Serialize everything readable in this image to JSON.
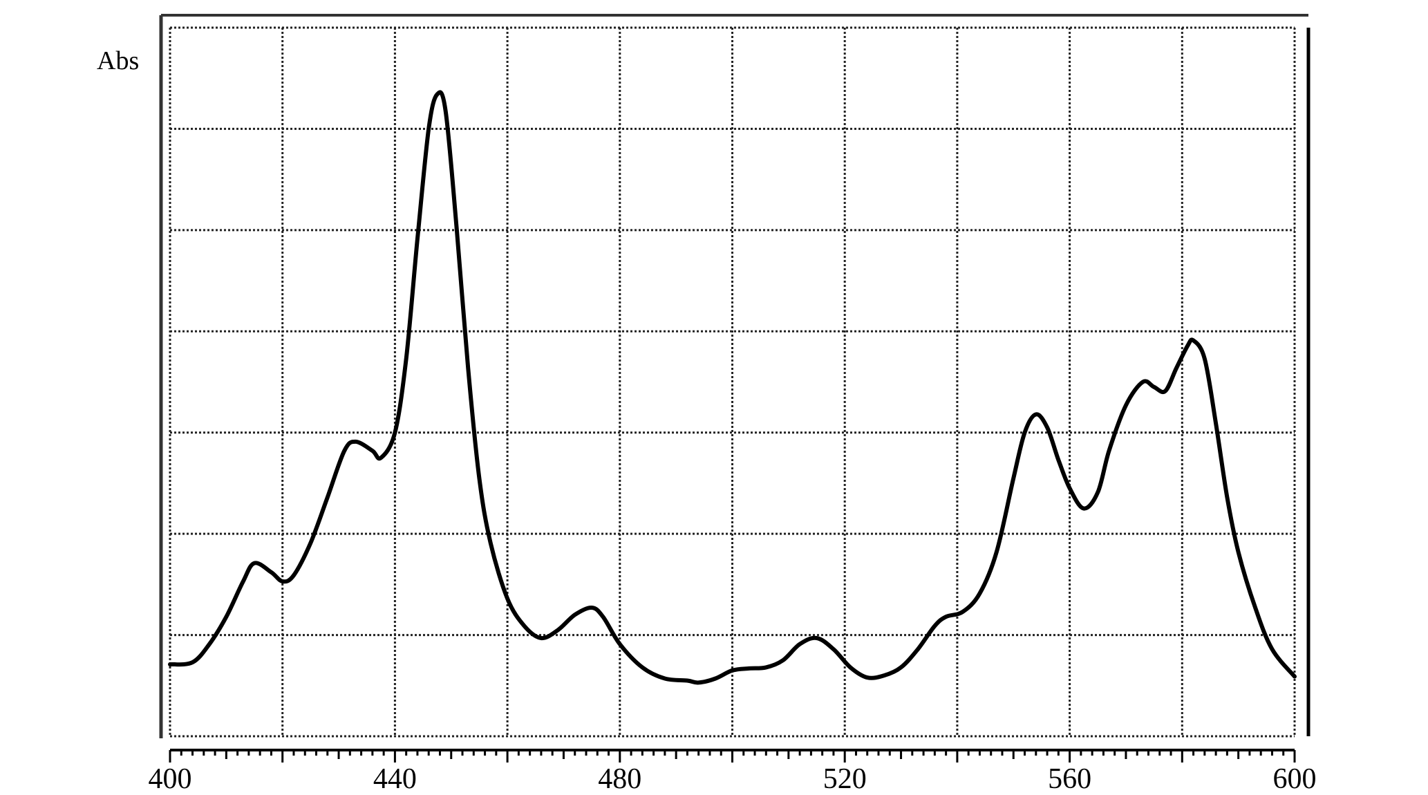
{
  "chart_data": {
    "type": "line",
    "title": "",
    "xlabel": "",
    "ylabel": "Abs",
    "xlim": [
      400,
      600
    ],
    "ylim": [
      0,
      7
    ],
    "grid": true,
    "x_ticks": [
      400,
      440,
      480,
      520,
      560,
      600
    ],
    "x_tick_labels": [
      "400",
      "440",
      "480",
      "520",
      "560",
      "600"
    ],
    "y_tick_labels": [],
    "line_color": "#000000",
    "series": [
      {
        "x": [
          400,
          404,
          407,
          410,
          413,
          415,
          418,
          420,
          422,
          425,
          428,
          431,
          433,
          436,
          437.5,
          440,
          442,
          444,
          446,
          447.5,
          449,
          451,
          453,
          455,
          457,
          460,
          463,
          466,
          469,
          472,
          475,
          477,
          480,
          484,
          488,
          492,
          494,
          497,
          500,
          503,
          506,
          509,
          512,
          515,
          518,
          521,
          524,
          527,
          530,
          533,
          536,
          538,
          541,
          544,
          547,
          550,
          552,
          554,
          556,
          558,
          560,
          562.5,
          565,
          567,
          570,
          573,
          575,
          577,
          579,
          581,
          582,
          584,
          586,
          588,
          590,
          593,
          596,
          600
        ],
        "y": [
          0.71,
          0.73,
          0.91,
          1.18,
          1.53,
          1.71,
          1.62,
          1.53,
          1.59,
          1.91,
          2.36,
          2.82,
          2.91,
          2.82,
          2.75,
          3.0,
          3.73,
          4.91,
          6.0,
          6.34,
          6.18,
          5.0,
          3.64,
          2.55,
          1.91,
          1.36,
          1.09,
          0.97,
          1.05,
          1.2,
          1.27,
          1.18,
          0.91,
          0.68,
          0.57,
          0.55,
          0.53,
          0.57,
          0.65,
          0.67,
          0.68,
          0.75,
          0.91,
          0.97,
          0.86,
          0.68,
          0.58,
          0.6,
          0.68,
          0.86,
          1.09,
          1.18,
          1.23,
          1.41,
          1.82,
          2.55,
          3.0,
          3.18,
          3.05,
          2.73,
          2.45,
          2.25,
          2.41,
          2.82,
          3.27,
          3.5,
          3.45,
          3.41,
          3.64,
          3.86,
          3.91,
          3.73,
          3.09,
          2.36,
          1.82,
          1.27,
          0.86,
          0.59
        ]
      }
    ]
  }
}
